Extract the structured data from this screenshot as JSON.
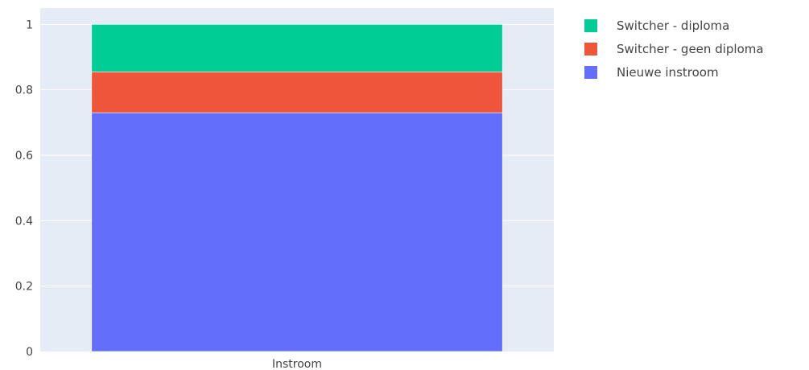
{
  "chart_data": {
    "type": "bar",
    "stacked": true,
    "categories": [
      "Instroom"
    ],
    "series": [
      {
        "name": "Nieuwe instroom",
        "values": [
          0.73
        ],
        "color": "#636efa"
      },
      {
        "name": "Switcher - geen diploma",
        "values": [
          0.125
        ],
        "color": "#ef553b"
      },
      {
        "name": "Switcher - diploma",
        "values": [
          0.145
        ],
        "color": "#00cc96"
      }
    ],
    "ylim": [
      0,
      1.05
    ],
    "yticks": [
      0,
      0.2,
      0.4,
      0.6,
      0.8,
      1
    ],
    "ytick_labels": [
      "0",
      "0.2",
      "0.4",
      "0.6",
      "0.8",
      "1"
    ],
    "title": "",
    "xlabel": "",
    "ylabel": "",
    "grid": true,
    "plot_background": "#e5ecf6",
    "grid_color": "#ffffff",
    "legend_position": "top-right",
    "legend_order": [
      "Switcher - diploma",
      "Switcher - geen diploma",
      "Nieuwe instroom"
    ]
  }
}
